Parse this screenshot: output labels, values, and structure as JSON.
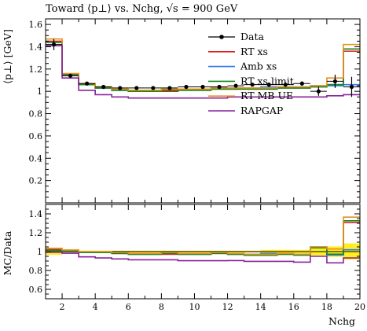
{
  "chart_data": {
    "type": "line",
    "title": "Toward ⟨p⊥⟩ vs. Nchg, √s = 900 GeV",
    "xlabel": "Nchg",
    "ylabel": "⟨p⊥⟩ [GeV]",
    "ratio_ylabel": "MC/Data",
    "xlim": [
      1,
      20
    ],
    "ylim": [
      0,
      1.65
    ],
    "ratio_ylim": [
      0.5,
      1.5
    ],
    "x_ticks": [
      2,
      4,
      6,
      8,
      10,
      12,
      14,
      16,
      18,
      20
    ],
    "y_ticks": [
      0.2,
      0.4,
      0.6,
      0.8,
      1,
      1.2,
      1.4,
      1.6
    ],
    "ratio_y_ticks": [
      0.6,
      0.8,
      1,
      1.2,
      1.4
    ],
    "legend_position": "top-right",
    "bin_edges": [
      1,
      2,
      3,
      4,
      5,
      6,
      7,
      8,
      9,
      10,
      11,
      12,
      13,
      14,
      15,
      16,
      17,
      18,
      19,
      20
    ],
    "data": {
      "name": "Data",
      "x": [
        1.5,
        2.5,
        3.5,
        4.5,
        5.5,
        6.5,
        7.5,
        8.5,
        9.5,
        10.5,
        11.5,
        12.5,
        13.5,
        14.5,
        15.5,
        16.5,
        17.5,
        18.5,
        19.5
      ],
      "y": [
        1.42,
        1.14,
        1.07,
        1.04,
        1.03,
        1.03,
        1.03,
        1.03,
        1.04,
        1.04,
        1.04,
        1.05,
        1.06,
        1.06,
        1.06,
        1.07,
        1.0,
        1.09,
        1.04
      ],
      "yerr": [
        0.05,
        0.01,
        0.01,
        0.01,
        0.01,
        0.01,
        0.01,
        0.01,
        0.01,
        0.01,
        0.01,
        0.01,
        0.01,
        0.02,
        0.02,
        0.02,
        0.04,
        0.06,
        0.09
      ]
    },
    "series": [
      {
        "name": "RT xs",
        "color": "#dd2222",
        "values": [
          1.45,
          1.15,
          1.06,
          1.03,
          1.01,
          1.0,
          1.0,
          1.0,
          1.01,
          1.01,
          1.02,
          1.02,
          1.02,
          1.02,
          1.03,
          1.03,
          1.04,
          1.06,
          1.36
        ]
      },
      {
        "name": "Amb xs",
        "color": "#3377ee",
        "values": [
          1.44,
          1.15,
          1.06,
          1.03,
          1.01,
          1.01,
          1.01,
          1.01,
          1.02,
          1.02,
          1.03,
          1.03,
          1.03,
          1.04,
          1.04,
          1.04,
          1.05,
          1.05,
          1.06
        ]
      },
      {
        "name": "RT xs limit",
        "color": "#11881a",
        "values": [
          1.44,
          1.15,
          1.06,
          1.03,
          1.01,
          1.0,
          1.0,
          1.01,
          1.01,
          1.01,
          1.02,
          1.02,
          1.02,
          1.02,
          1.03,
          1.03,
          1.04,
          1.06,
          1.38
        ]
      },
      {
        "name": "RT MB UE",
        "color": "#e89020",
        "values": [
          1.47,
          1.16,
          1.07,
          1.04,
          1.02,
          1.01,
          1.01,
          1.02,
          1.02,
          1.02,
          1.03,
          1.03,
          1.03,
          1.03,
          1.04,
          1.04,
          1.05,
          1.12,
          1.42
        ]
      },
      {
        "name": "RAPGAP",
        "color": "#882299",
        "values": [
          1.41,
          1.12,
          1.01,
          0.97,
          0.95,
          0.94,
          0.94,
          0.94,
          0.94,
          0.94,
          0.94,
          0.95,
          0.95,
          0.95,
          0.95,
          0.95,
          0.95,
          0.96,
          0.97
        ]
      }
    ]
  }
}
